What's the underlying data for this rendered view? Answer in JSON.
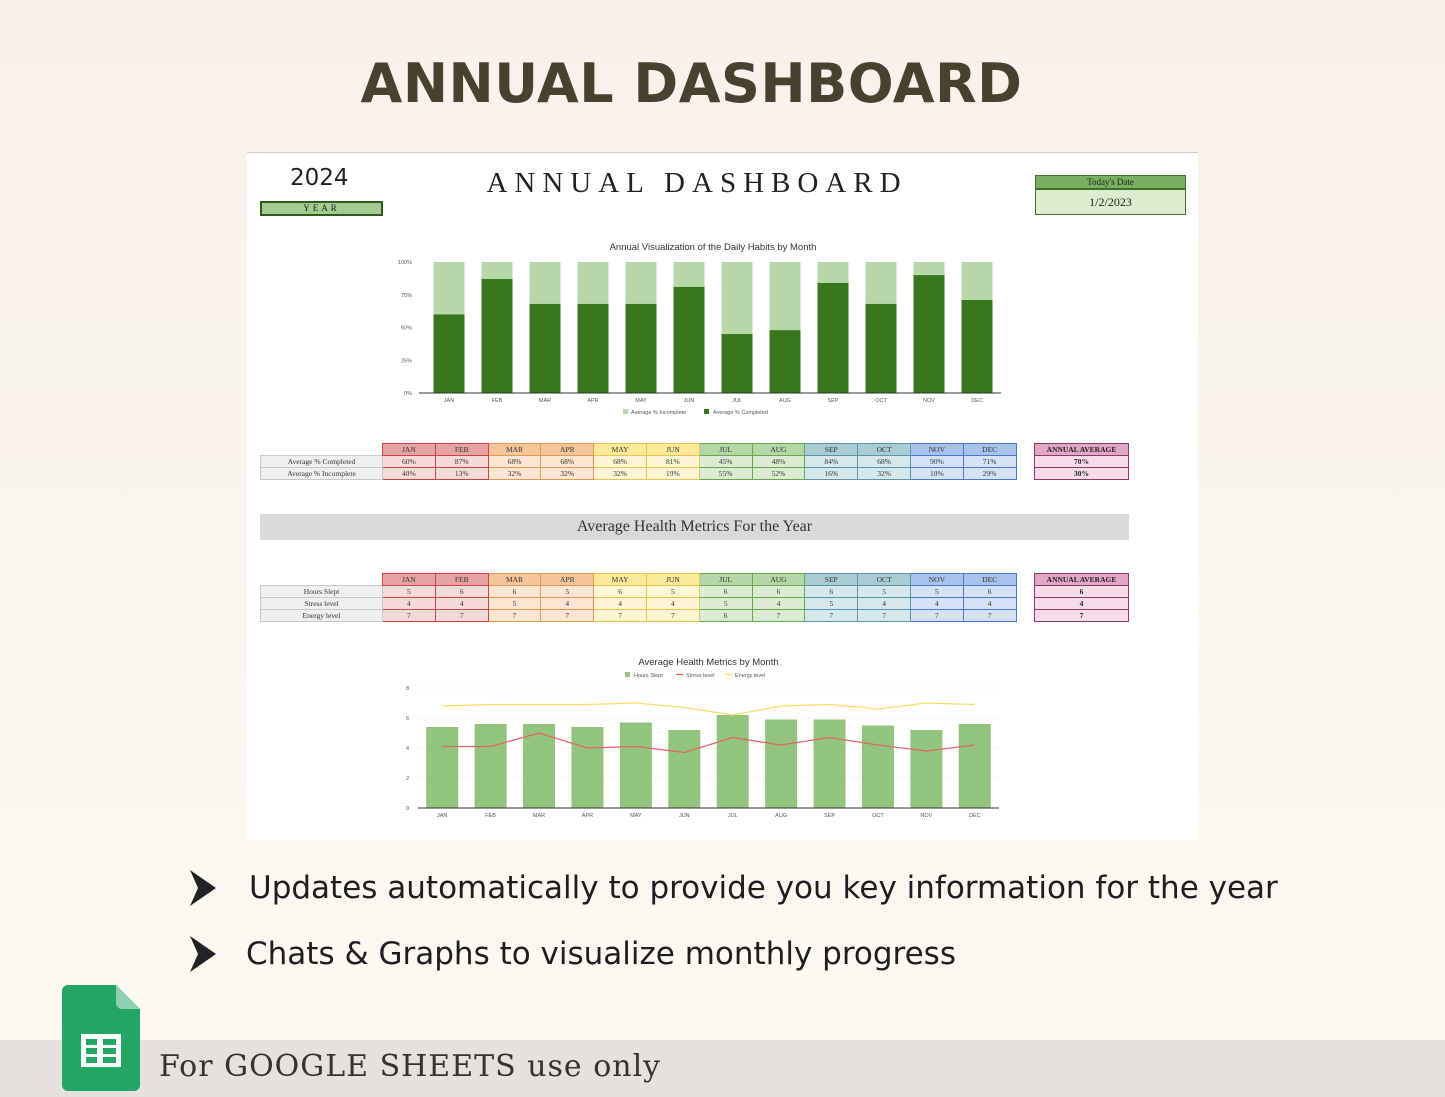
{
  "page": {
    "title": "ANNUAL DASHBOARD",
    "bullets": [
      "Updates automatically to provide you key information for the year",
      "Chats & Graphs to visualize monthly progress"
    ],
    "footer": "For GOOGLE SHEETS use only",
    "footer_icon": "google-sheets-icon"
  },
  "sheet": {
    "year_value": "2024",
    "year_label": "YEAR",
    "title": "ANNUAL DASHBOARD",
    "date_label": "Today's Date",
    "date_value": "1/2/2023",
    "section_header": "Average Health Metrics For the Year"
  },
  "months": [
    "JAN",
    "FEB",
    "MAR",
    "APR",
    "MAY",
    "JUN",
    "JUL",
    "AUG",
    "SEP",
    "OCT",
    "NOV",
    "DEC"
  ],
  "month_colors": {
    "header": [
      "#e6a3a3",
      "#e6a3a3",
      "#f5c59a",
      "#f5c59a",
      "#fde99a",
      "#fde99a",
      "#b5d6a7",
      "#b5d6a7",
      "#a9cbd3",
      "#a9cbd3",
      "#a9c2ea",
      "#a9c2ea"
    ],
    "cell": [
      "#f6d9d9",
      "#f6d9d9",
      "#fce5d1",
      "#fce5d1",
      "#fef5d5",
      "#fef5d5",
      "#dcecd3",
      "#dcecd3",
      "#d7e8ec",
      "#d7e8ec",
      "#d6e3f7",
      "#d6e3f7"
    ],
    "border": [
      "#cc4444",
      "#cc4444",
      "#e39a52",
      "#e39a52",
      "#e8c550",
      "#e8c550",
      "#6aa84f",
      "#6aa84f",
      "#5b95a6",
      "#5b95a6",
      "#4a78d6",
      "#4a78d6"
    ]
  },
  "habits_table": {
    "rows": [
      {
        "label": "Average % Completed",
        "values": [
          "60%",
          "87%",
          "68%",
          "68%",
          "68%",
          "81%",
          "45%",
          "48%",
          "84%",
          "68%",
          "90%",
          "71%"
        ]
      },
      {
        "label": "Average % Incomplete",
        "values": [
          "40%",
          "13%",
          "32%",
          "32%",
          "32%",
          "19%",
          "55%",
          "52%",
          "16%",
          "32%",
          "10%",
          "29%"
        ]
      }
    ],
    "average_header": "ANNUAL AVERAGE",
    "average_values": [
      "70%",
      "30%"
    ]
  },
  "health_table": {
    "rows": [
      {
        "label": "Hours Slept",
        "values": [
          "5",
          "6",
          "6",
          "5",
          "6",
          "5",
          "6",
          "6",
          "6",
          "5",
          "5",
          "6"
        ]
      },
      {
        "label": "Stress level",
        "values": [
          "4",
          "4",
          "5",
          "4",
          "4",
          "4",
          "5",
          "4",
          "5",
          "4",
          "4",
          "4"
        ]
      },
      {
        "label": "Energy level",
        "values": [
          "7",
          "7",
          "7",
          "7",
          "7",
          "7",
          "6",
          "7",
          "7",
          "7",
          "7",
          "7"
        ]
      }
    ],
    "average_header": "ANNUAL AVERAGE",
    "average_values": [
      "6",
      "4",
      "7"
    ]
  },
  "chart_data": [
    {
      "type": "bar",
      "stacked": true,
      "title": "Annual Visualization of the Daily Habits by Month",
      "categories": [
        "JAN",
        "FEB",
        "MAR",
        "APR",
        "MAY",
        "JUN",
        "JUL",
        "AUG",
        "SEP",
        "OCT",
        "NOV",
        "DEC"
      ],
      "series": [
        {
          "name": "Average % Completed",
          "color": "#38761d",
          "values": [
            60,
            87,
            68,
            68,
            68,
            81,
            45,
            48,
            84,
            68,
            90,
            71
          ]
        },
        {
          "name": "Average % Incomplete",
          "color": "#b6d7a8",
          "values": [
            40,
            13,
            32,
            32,
            32,
            19,
            55,
            52,
            16,
            32,
            10,
            29
          ]
        }
      ],
      "yticks": [
        "0%",
        "25%",
        "50%",
        "75%",
        "100%"
      ],
      "ylim": [
        0,
        100
      ],
      "legend": "bottom"
    },
    {
      "type": "bar",
      "title": "Average Health Metrics by Month",
      "categories": [
        "JAN",
        "FEB",
        "MAR",
        "APR",
        "MAY",
        "JUN",
        "JUL",
        "AUG",
        "SEP",
        "OCT",
        "NOV",
        "DEC"
      ],
      "series": [
        {
          "name": "Hours Slept",
          "kind": "bar",
          "color": "#93c47d",
          "values": [
            5.4,
            5.6,
            5.6,
            5.4,
            5.7,
            5.2,
            6.2,
            5.9,
            5.9,
            5.5,
            5.2,
            5.6
          ]
        },
        {
          "name": "Stress level",
          "kind": "line",
          "color": "#e06666",
          "values": [
            4.1,
            4.1,
            5.0,
            4.0,
            4.1,
            3.7,
            4.7,
            4.2,
            4.7,
            4.2,
            3.8,
            4.2
          ]
        },
        {
          "name": "Energy level",
          "kind": "line",
          "color": "#ffd966",
          "values": [
            6.8,
            6.9,
            6.9,
            6.9,
            7.0,
            6.7,
            6.2,
            6.8,
            6.9,
            6.6,
            7.0,
            6.9
          ]
        }
      ],
      "yticks": [
        "0",
        "2",
        "4",
        "6",
        "8"
      ],
      "ylim": [
        0,
        8
      ],
      "legend": "top"
    }
  ]
}
